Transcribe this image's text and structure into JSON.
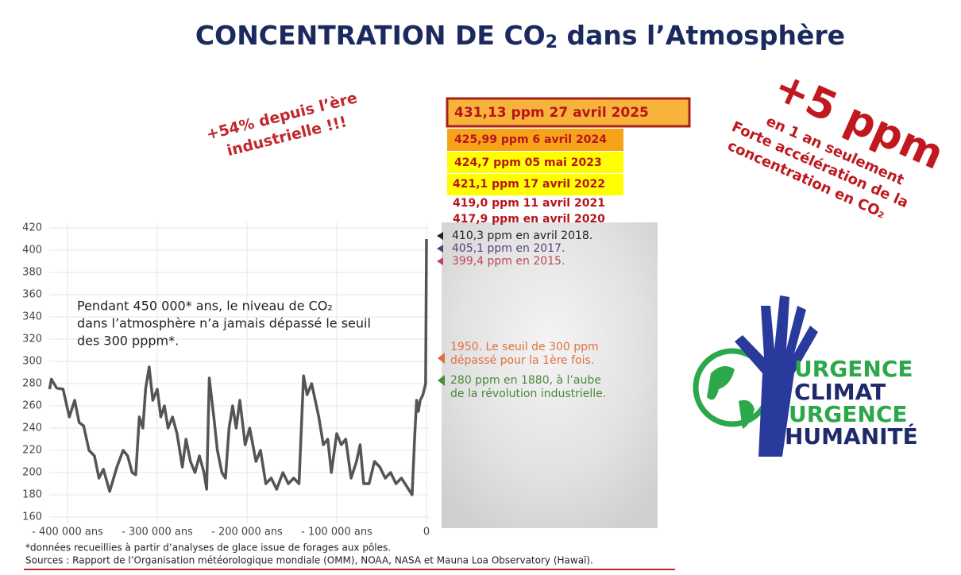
{
  "slide": {
    "title": {
      "main": "CONCENTRATION DE CO",
      "sub": "2",
      "rest": " dans l’Atmosphère"
    },
    "left_note": [
      "+54% depuis l’ère",
      "industrielle !!!"
    ],
    "big_note": "+5 ppm",
    "right_note": [
      "en 1 an seulement",
      "Forte accélération de la",
      "concentration en CO₂"
    ],
    "readings": [
      "431,13 ppm  27 avril 2025",
      "425,99 ppm  6 avril 2024",
      "424,7 ppm  05 mai 2023",
      "421,1 ppm  17 avril 2022",
      "419,0 ppm  11 avril 2021",
      "417,9 ppm  en avril 2020"
    ],
    "logo": [
      "URGENCE",
      "CLIMAT",
      "URGENCE",
      "HUMANITÉ"
    ],
    "footnotes": [
      "*données recueillies à partir d’analyses de glace issue de forages aux pôles.",
      "Sources : Rapport de l’Organisation météorologique mondiale (OMM), NOAA, NASA et Mauna Loa Observatory (Hawaï)."
    ]
  },
  "chart_data": {
    "type": "line",
    "x": [
      -420000,
      -418000,
      -412000,
      -405000,
      -398000,
      -392000,
      -387000,
      -382000,
      -376000,
      -370000,
      -365000,
      -360000,
      -353000,
      -345000,
      -338000,
      -333000,
      -328000,
      -324000,
      -320000,
      -316000,
      -313000,
      -309000,
      -305000,
      -300000,
      -296000,
      -292000,
      -288000,
      -283000,
      -278000,
      -272000,
      -268000,
      -263000,
      -258000,
      -253000,
      -248000,
      -245000,
      -242000,
      -237000,
      -233000,
      -228000,
      -224000,
      -220000,
      -216000,
      -212000,
      -208000,
      -202000,
      -197000,
      -190000,
      -185000,
      -179000,
      -173000,
      -167000,
      -160000,
      -154000,
      -148000,
      -142000,
      -137000,
      -133000,
      -128000,
      -124000,
      -120000,
      -115000,
      -110000,
      -106000,
      -100000,
      -95000,
      -90000,
      -84000,
      -78000,
      -74000,
      -70000,
      -64000,
      -58000,
      -52000,
      -46000,
      -40000,
      -34000,
      -28000,
      -20000,
      -16000,
      -13000,
      -11000,
      -9000,
      -7000,
      -4000,
      -1000,
      0
    ],
    "series": [
      {
        "name": "CO2",
        "color": "#555555",
        "values": [
          275,
          284,
          276,
          275,
          250,
          265,
          245,
          242,
          220,
          215,
          195,
          203,
          183,
          205,
          220,
          215,
          200,
          198,
          250,
          240,
          275,
          295,
          265,
          275,
          250,
          260,
          240,
          250,
          235,
          205,
          230,
          210,
          200,
          215,
          200,
          185,
          285,
          250,
          220,
          200,
          195,
          240,
          260,
          240,
          265,
          225,
          240,
          210,
          220,
          190,
          195,
          185,
          200,
          190,
          195,
          190,
          287,
          270,
          280,
          265,
          250,
          225,
          230,
          200,
          235,
          225,
          230,
          195,
          210,
          225,
          190,
          190,
          210,
          205,
          195,
          200,
          190,
          195,
          185,
          180,
          235,
          265,
          255,
          265,
          270,
          280,
          410
        ]
      }
    ],
    "xlim": [
      -420000,
      3000
    ],
    "ylim": [
      155,
      425
    ],
    "xticks": [
      {
        "value": -400000,
        "label": "- 400 000 ans"
      },
      {
        "value": -300000,
        "label": "- 300 000 ans"
      },
      {
        "value": -200000,
        "label": "- 200 000 ans"
      },
      {
        "value": -100000,
        "label": "- 100 000 ans"
      },
      0
    ],
    "yticks": [
      160,
      180,
      200,
      220,
      240,
      260,
      280,
      300,
      320,
      340,
      360,
      380,
      400,
      420
    ],
    "grid": true,
    "annotations": [
      "Pendant 450 000* ans, le niveau de CO₂",
      "dans l’atmosphère n’a jamais dépassé le seuil",
      "des 300 pppm*."
    ],
    "markers": [
      [
        "410,3 ppm en avril 2018."
      ],
      [
        "405,1 ppm en 2017."
      ],
      [
        "399,4 ppm en 2015."
      ],
      [
        "1950. Le seuil de 300 ppm",
        "dépassé pour la 1ère fois."
      ],
      [
        "280 ppm en 1880, à l’aube",
        "de la révolution industrielle."
      ]
    ]
  }
}
